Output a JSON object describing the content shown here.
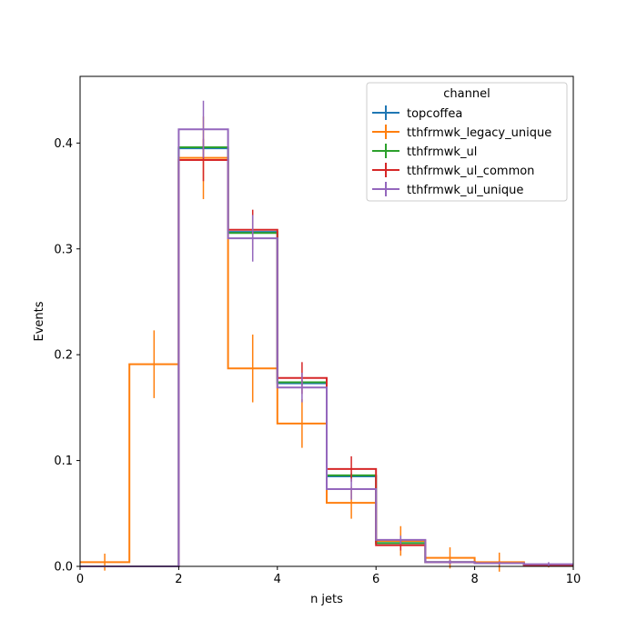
{
  "chart_data": {
    "type": "histogram",
    "xlabel": "n jets",
    "ylabel": "Events",
    "xlim": [
      0,
      10
    ],
    "ylim": [
      0,
      0.463
    ],
    "x_ticks": [
      0,
      2,
      4,
      6,
      8,
      10
    ],
    "y_ticks": [
      0.0,
      0.1,
      0.2,
      0.3,
      0.4
    ],
    "bin_edges": [
      0,
      1,
      2,
      3,
      4,
      5,
      6,
      7,
      8,
      9,
      10
    ],
    "grid": false,
    "legend": {
      "title": "channel",
      "placement": "upper-right"
    },
    "series": [
      {
        "name": "topcoffea",
        "color": "#1f77b4",
        "values": [
          0,
          0,
          0.395,
          0.316,
          0.173,
          0.085,
          0.022,
          0.004,
          0.003,
          0.001
        ],
        "errors": [
          0,
          0,
          0.002,
          0.002,
          0.002,
          0.002,
          0.001,
          0.001,
          0.0005,
          0.0005
        ]
      },
      {
        "name": "tthfrmwk_legacy_unique",
        "color": "#ff7f0e",
        "values": [
          0.004,
          0.191,
          0.386,
          0.187,
          0.135,
          0.06,
          0.024,
          0.008,
          0.004,
          0.001
        ],
        "errors": [
          0.008,
          0.032,
          0.039,
          0.032,
          0.023,
          0.015,
          0.014,
          0.01,
          0.009,
          0.002
        ]
      },
      {
        "name": "tthfrmwk_ul",
        "color": "#2ca02c",
        "values": [
          0,
          0,
          0.396,
          0.315,
          0.174,
          0.086,
          0.022,
          0.004,
          0.003,
          0.001
        ],
        "errors": [
          0,
          0,
          0.002,
          0.002,
          0.002,
          0.002,
          0.001,
          0.001,
          0.0005,
          0.0005
        ]
      },
      {
        "name": "tthfrmwk_ul_common",
        "color": "#d62728",
        "values": [
          0,
          0,
          0.384,
          0.318,
          0.178,
          0.092,
          0.02,
          0.004,
          0.003,
          0.001
        ],
        "errors": [
          0,
          0,
          0.02,
          0.019,
          0.015,
          0.012,
          0.005,
          0.002,
          0.0015,
          0.001
        ]
      },
      {
        "name": "tthfrmwk_ul_unique",
        "color": "#9467bd",
        "values": [
          0,
          0,
          0.413,
          0.31,
          0.169,
          0.073,
          0.025,
          0.004,
          0.003,
          0.002
        ],
        "errors": [
          0,
          0,
          0.027,
          0.022,
          0.014,
          0.01,
          0.004,
          0.002,
          0.0015,
          0.002
        ]
      }
    ]
  }
}
